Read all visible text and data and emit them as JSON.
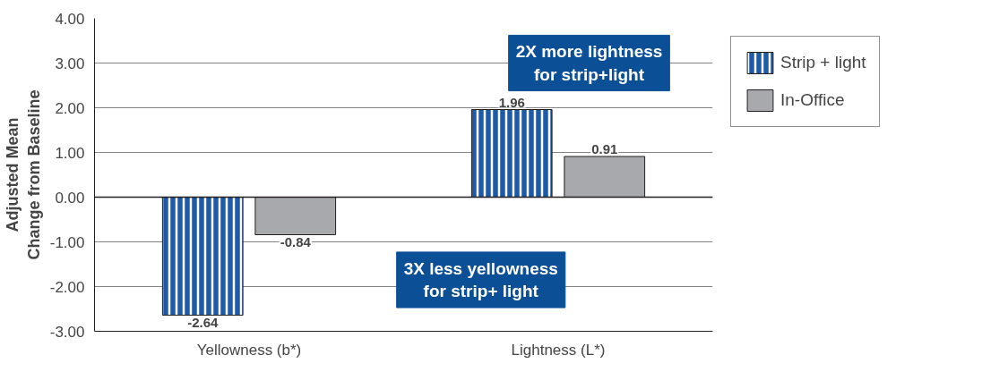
{
  "chart_data": {
    "type": "bar",
    "categories": [
      "Yellowness (b*)",
      "Lightness (L*)"
    ],
    "series": [
      {
        "name": "Strip + light",
        "color": "#1f5aa6",
        "values": [
          -2.64,
          1.96
        ]
      },
      {
        "name": "In-Office",
        "color": "#a7a9ac",
        "values": [
          -0.84,
          0.91
        ]
      }
    ],
    "ylabel": "Adjusted Mean\nChange from Baseline",
    "ylim": [
      -3,
      4
    ],
    "yticks": [
      {
        "value": -3,
        "label": "-3.00"
      },
      {
        "value": -2,
        "label": "-2.00"
      },
      {
        "value": -1,
        "label": "-1.00"
      },
      {
        "value": 0,
        "label": "0.00"
      },
      {
        "value": 1,
        "label": "1.00"
      },
      {
        "value": 2,
        "label": "2.00"
      },
      {
        "value": 3,
        "label": "3.00"
      },
      {
        "value": 4,
        "label": "4.00"
      }
    ],
    "annotations": [
      "2X more lightness\nfor strip+light",
      "3X less yellowness\nfor strip+ light"
    ],
    "data_labels": true,
    "grid": "y",
    "legend": "top right"
  }
}
